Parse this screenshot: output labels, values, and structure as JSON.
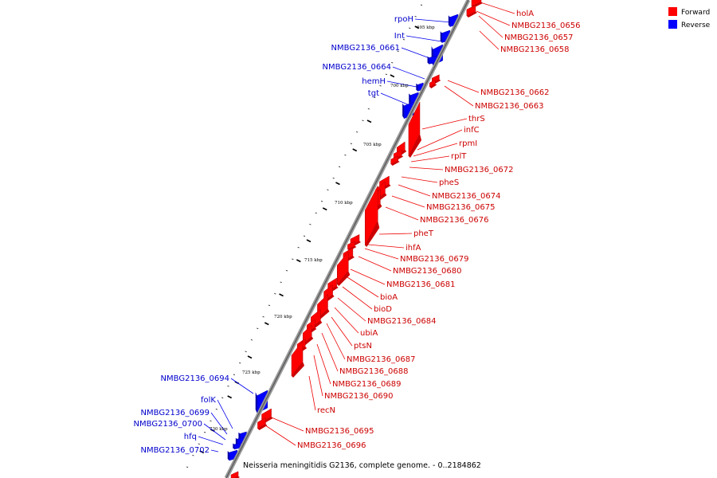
{
  "caption": "Neisseria meningitidis G2136, complete genome. - 0..2184862",
  "legend": [
    {
      "label": "Forward",
      "color": "#ff0000"
    },
    {
      "label": "Reverse",
      "color": "#0000ff"
    }
  ],
  "colors": {
    "forward": "#ff0000",
    "reverse": "#0000ff",
    "forward_label": "#cc0000",
    "reverse_label": "#0000cc",
    "backbone": "#777777"
  },
  "scale_labels": [
    "695 kbp",
    "700 kbp",
    "705 kbp",
    "710 kbp",
    "715 kbp",
    "720 kbp",
    "725 kbp",
    "730 kbp"
  ],
  "forward_genes": [
    "holA",
    "NMBG2136_0656",
    "NMBG2136_0657",
    "NMBG2136_0658",
    "NMBG2136_0662",
    "NMBG2136_0663",
    "thrS",
    "infC",
    "rpmI",
    "rplT",
    "NMBG2136_0672",
    "pheS",
    "NMBG2136_0674",
    "NMBG2136_0675",
    "NMBG2136_0676",
    "pheT",
    "ihfA",
    "NMBG2136_0679",
    "NMBG2136_0680",
    "NMBG2136_0681",
    "bioA",
    "bioD",
    "NMBG2136_0684",
    "ubiA",
    "ptsN",
    "NMBG2136_0687",
    "NMBG2136_0688",
    "NMBG2136_0689",
    "NMBG2136_0690",
    "recN",
    "NMBG2136_0695",
    "NMBG2136_0696"
  ],
  "reverse_genes": [
    "rpoH",
    "Int",
    "NMBG2136_0661",
    "NMBG2136_0664",
    "hemH",
    "tgt",
    "NMBG2136_0694",
    "folK",
    "NMBG2136_0699",
    "NMBG2136_0700",
    "hfq",
    "NMBG2136_0702"
  ]
}
